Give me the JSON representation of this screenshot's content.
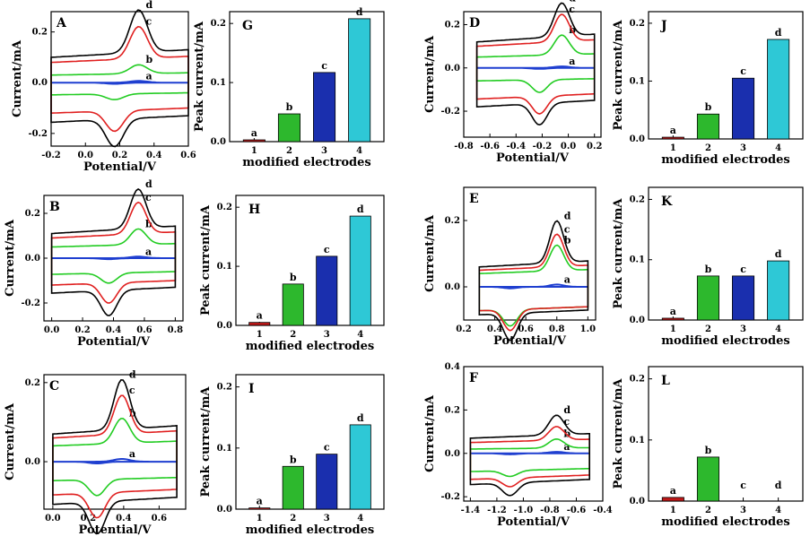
{
  "curve_colors": {
    "a": "#1f3fd0",
    "b": "#22cc22",
    "c": "#e02020",
    "d": "#000000"
  },
  "bar_colors": [
    "#c01818",
    "#2db82d",
    "#1a2fae",
    "#2ec8d6"
  ],
  "chart_data": [
    {
      "panel": "A",
      "type": "line",
      "xlabel": "Potential/V",
      "ylabel": "Current/mA",
      "xticks": [
        "-0.2",
        "0.0",
        "0.2",
        "0.4",
        "0.6"
      ],
      "yticks": [
        "-0.2",
        "0.0",
        "0.2"
      ],
      "xlim": [
        -0.2,
        0.6
      ],
      "ylim": [
        -0.25,
        0.28
      ],
      "start": -0.2,
      "end": 0.6,
      "peak": 0.31,
      "cpeak": 0.17,
      "series": [
        {
          "name": "a",
          "upper": 0.0,
          "lower": 0.0,
          "peak": 0.01
        },
        {
          "name": "b",
          "upper": 0.03,
          "lower": -0.04,
          "peak": 0.05
        },
        {
          "name": "c",
          "upper": 0.08,
          "lower": -0.1,
          "peak": 0.18
        },
        {
          "name": "d",
          "upper": 0.1,
          "lower": -0.13,
          "peak": 0.24
        }
      ]
    },
    {
      "panel": "G",
      "type": "bar",
      "xlabel": "modified electrodes",
      "ylabel": "Peak current/mA",
      "categories": [
        "1",
        "2",
        "3",
        "4"
      ],
      "bar_labels": [
        "a",
        "b",
        "c",
        "d"
      ],
      "values": [
        0.003,
        0.047,
        0.117,
        0.208
      ],
      "yticks": [
        "0.0",
        "0.1",
        "0.2"
      ],
      "ylim": [
        0,
        0.22
      ]
    },
    {
      "panel": "D",
      "type": "line",
      "xlabel": "Potential/V",
      "ylabel": "Current/mA",
      "xticks": [
        "-0.8",
        "-0.6",
        "-0.4",
        "-0.2",
        "0.0",
        "0.2"
      ],
      "yticks": [
        "-0.2",
        "0.0",
        "0.2"
      ],
      "xlim": [
        -0.8,
        0.25
      ],
      "ylim": [
        -0.32,
        0.26
      ],
      "start": -0.7,
      "end": 0.2,
      "peak": -0.05,
      "cpeak": -0.22,
      "series": [
        {
          "name": "a",
          "upper": 0.0,
          "lower": 0.0,
          "peak": 0.01
        },
        {
          "name": "b",
          "upper": 0.05,
          "lower": -0.05,
          "peak": 0.13
        },
        {
          "name": "c",
          "upper": 0.1,
          "lower": -0.12,
          "peak": 0.18
        },
        {
          "name": "d",
          "upper": 0.12,
          "lower": -0.15,
          "peak": 0.22
        }
      ]
    },
    {
      "panel": "J",
      "type": "bar",
      "xlabel": "modified electrodes",
      "ylabel": "Peak current/mA",
      "categories": [
        "1",
        "2",
        "3",
        "4"
      ],
      "bar_labels": [
        "a",
        "b",
        "c",
        "d"
      ],
      "values": [
        0.003,
        0.043,
        0.105,
        0.172
      ],
      "yticks": [
        "0.0",
        "0.1",
        "0.2"
      ],
      "ylim": [
        0,
        0.22
      ]
    },
    {
      "panel": "B",
      "type": "line",
      "xlabel": "Potential/V",
      "ylabel": "Current/mA",
      "xticks": [
        "0.0",
        "0.2",
        "0.4",
        "0.6",
        "0.8"
      ],
      "yticks": [
        "-0.2",
        "0.0",
        "0.2"
      ],
      "xlim": [
        -0.05,
        0.85
      ],
      "ylim": [
        -0.28,
        0.28
      ],
      "start": 0.0,
      "end": 0.8,
      "peak": 0.56,
      "cpeak": 0.37,
      "series": [
        {
          "name": "a",
          "upper": 0.0,
          "lower": 0.0,
          "peak": 0.01
        },
        {
          "name": "b",
          "upper": 0.05,
          "lower": -0.06,
          "peak": 0.1
        },
        {
          "name": "c",
          "upper": 0.09,
          "lower": -0.1,
          "peak": 0.2
        },
        {
          "name": "d",
          "upper": 0.11,
          "lower": -0.13,
          "peak": 0.25
        }
      ]
    },
    {
      "panel": "H",
      "type": "bar",
      "xlabel": "modified electrodes",
      "ylabel": "Peak current/mA",
      "categories": [
        "1",
        "2",
        "3",
        "4"
      ],
      "bar_labels": [
        "a",
        "b",
        "c",
        "d"
      ],
      "values": [
        0.005,
        0.07,
        0.117,
        0.185
      ],
      "yticks": [
        "0.0",
        "0.1",
        "0.2"
      ],
      "ylim": [
        0,
        0.22
      ]
    },
    {
      "panel": "E",
      "type": "line",
      "xlabel": "Potential/V",
      "ylabel": "Current/mA",
      "xticks": [
        "0.2",
        "0.4",
        "0.6",
        "0.8",
        "1.0"
      ],
      "yticks": [
        "0.0",
        "0.2"
      ],
      "xlim": [
        0.2,
        1.05
      ],
      "ylim": [
        -0.1,
        0.3
      ],
      "start": 0.3,
      "end": 1.0,
      "peak": 0.8,
      "cpeak": 0.5,
      "series": [
        {
          "name": "a",
          "upper": 0.0,
          "lower": 0.0,
          "peak": 0.01
        },
        {
          "name": "b",
          "upper": 0.04,
          "lower": -0.06,
          "peak": 0.11
        },
        {
          "name": "c",
          "upper": 0.05,
          "lower": -0.06,
          "peak": 0.14
        },
        {
          "name": "d",
          "upper": 0.06,
          "lower": -0.07,
          "peak": 0.18
        }
      ]
    },
    {
      "panel": "K",
      "type": "bar",
      "xlabel": "modified electrodes",
      "ylabel": "Peak current/mA",
      "categories": [
        "1",
        "2",
        "3",
        "4"
      ],
      "bar_labels": [
        "a",
        "b",
        "c",
        "d"
      ],
      "values": [
        0.003,
        0.073,
        0.073,
        0.098
      ],
      "yticks": [
        "0.0",
        "0.1",
        "0.2"
      ],
      "ylim": [
        0,
        0.22
      ]
    },
    {
      "panel": "C",
      "type": "line",
      "xlabel": "Potential/V",
      "ylabel": "Current/mA",
      "xticks": [
        "0.0",
        "0.2",
        "0.4",
        "0.6"
      ],
      "yticks": [
        "0.0",
        "0.2"
      ],
      "xlim": [
        -0.05,
        0.75
      ],
      "ylim": [
        -0.12,
        0.22
      ],
      "start": 0.0,
      "end": 0.7,
      "peak": 0.39,
      "cpeak": 0.25,
      "series": [
        {
          "name": "a",
          "upper": 0.0,
          "lower": 0.0,
          "peak": 0.01
        },
        {
          "name": "b",
          "upper": 0.04,
          "lower": -0.04,
          "peak": 0.09
        },
        {
          "name": "c",
          "upper": 0.06,
          "lower": -0.07,
          "peak": 0.14
        },
        {
          "name": "d",
          "upper": 0.07,
          "lower": -0.09,
          "peak": 0.18
        }
      ]
    },
    {
      "panel": "I",
      "type": "bar",
      "xlabel": "modified electrodes",
      "ylabel": "Peak current/mA",
      "categories": [
        "1",
        "2",
        "3",
        "4"
      ],
      "bar_labels": [
        "a",
        "b",
        "c",
        "d"
      ],
      "values": [
        0.002,
        0.07,
        0.09,
        0.138
      ],
      "yticks": [
        "0.0",
        "0.1",
        "0.2"
      ],
      "ylim": [
        0,
        0.22
      ]
    },
    {
      "panel": "F",
      "type": "line",
      "xlabel": "Potential/V",
      "ylabel": "Current/mA",
      "xticks": [
        "-1.4",
        "-1.2",
        "-1.0",
        "-0.8",
        "-0.6",
        "-0.4"
      ],
      "yticks": [
        "-0.2",
        "0.0",
        "0.2",
        "0.4"
      ],
      "xlim": [
        -1.45,
        -0.4
      ],
      "ylim": [
        -0.22,
        0.4
      ],
      "start": -1.4,
      "end": -0.5,
      "peak": -0.75,
      "cpeak": -1.1,
      "series": [
        {
          "name": "a",
          "upper": 0.0,
          "lower": 0.0,
          "peak": 0.01
        },
        {
          "name": "b",
          "upper": 0.02,
          "lower": -0.07,
          "peak": 0.06
        },
        {
          "name": "c",
          "upper": 0.05,
          "lower": -0.1,
          "peak": 0.09
        },
        {
          "name": "d",
          "upper": 0.07,
          "lower": -0.12,
          "peak": 0.13
        }
      ]
    },
    {
      "panel": "L",
      "type": "bar",
      "xlabel": "modified electrodes",
      "ylabel": "Peak current/mA",
      "categories": [
        "1",
        "2",
        "3",
        "4"
      ],
      "bar_labels": [
        "a",
        "b",
        "c",
        "d"
      ],
      "values": [
        0.006,
        0.072,
        0,
        0
      ],
      "yticks": [
        "0.0",
        "0.1",
        "0.2"
      ],
      "ylim": [
        0,
        0.22
      ]
    }
  ]
}
